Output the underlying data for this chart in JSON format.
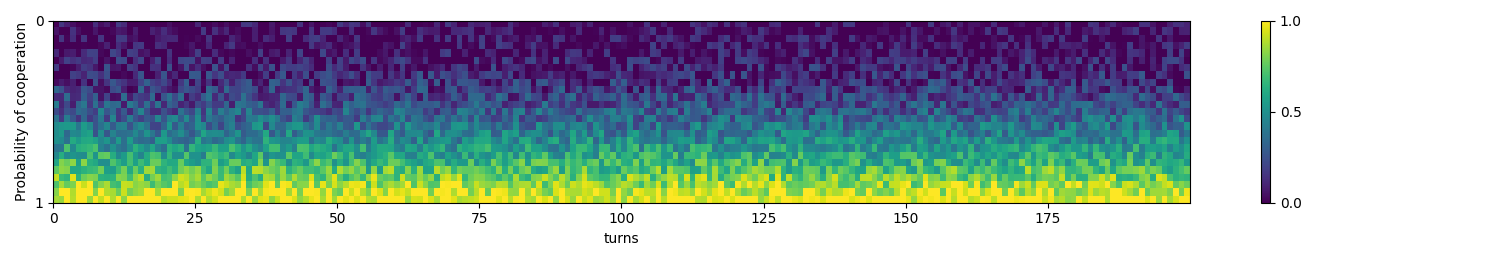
{
  "n_rows": 25,
  "n_cols": 200,
  "colormap": "viridis",
  "xlabel": "turns",
  "ylabel": "Probability of cooperation",
  "xticks": [
    0,
    25,
    50,
    75,
    100,
    125,
    150,
    175
  ],
  "ytick_top": "0",
  "ytick_bottom": "1",
  "vmin": 0.0,
  "vmax": 1.0,
  "figsize": [
    14.89,
    2.61
  ],
  "dpi": 100,
  "noise_scale": 0.18,
  "random_seed": 42,
  "gradient_power": 1.8
}
